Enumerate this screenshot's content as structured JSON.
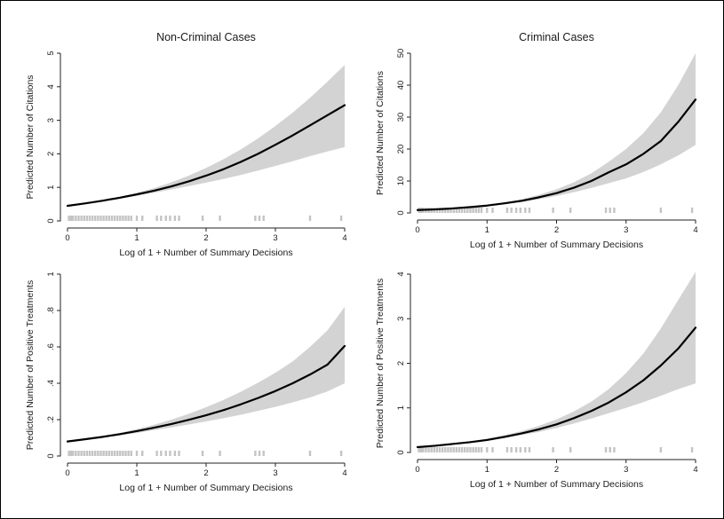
{
  "chart_data": [
    {
      "type": "line",
      "title": "Non-Criminal Cases",
      "xlabel": "Log of 1 + Number of Summary Decisions",
      "ylabel": "Predicted Number of Citations",
      "xlim": [
        0,
        4
      ],
      "ylim": [
        0,
        5
      ],
      "xticks": [
        "0",
        "1",
        "2",
        "3",
        "4"
      ],
      "yticks": [
        "0",
        "1",
        "2",
        "3",
        "4",
        "5"
      ],
      "series": [
        {
          "x": [
            0,
            0.25,
            0.5,
            0.75,
            1,
            1.25,
            1.5,
            1.75,
            2,
            2.25,
            2.5,
            2.75,
            3,
            3.25,
            3.5,
            3.75,
            4
          ],
          "y": [
            0.45,
            0.52,
            0.6,
            0.69,
            0.79,
            0.9,
            1.03,
            1.18,
            1.35,
            1.54,
            1.76,
            2.0,
            2.27,
            2.55,
            2.85,
            3.15,
            3.45
          ],
          "lower": [
            0.43,
            0.5,
            0.58,
            0.66,
            0.75,
            0.84,
            0.94,
            1.04,
            1.14,
            1.25,
            1.37,
            1.5,
            1.64,
            1.78,
            1.93,
            2.07,
            2.2
          ],
          "upper": [
            0.47,
            0.54,
            0.62,
            0.72,
            0.84,
            0.98,
            1.15,
            1.35,
            1.58,
            1.84,
            2.13,
            2.46,
            2.83,
            3.23,
            3.67,
            4.15,
            4.65
          ]
        }
      ],
      "rug": [
        0.02,
        0.05,
        0.08,
        0.12,
        0.16,
        0.2,
        0.24,
        0.28,
        0.32,
        0.36,
        0.4,
        0.44,
        0.48,
        0.52,
        0.56,
        0.6,
        0.64,
        0.68,
        0.72,
        0.76,
        0.8,
        0.84,
        0.88,
        0.92,
        1.0,
        1.08,
        1.29,
        1.35,
        1.42,
        1.48,
        1.55,
        1.61,
        1.95,
        2.2,
        2.71,
        2.77,
        2.83,
        3.5,
        3.95
      ]
    },
    {
      "type": "line",
      "title": "Criminal Cases",
      "xlabel": "Log of 1 + Number of Summary Decisions",
      "ylabel": "Predicted Number of Citations",
      "xlim": [
        0,
        4
      ],
      "ylim": [
        0,
        50
      ],
      "xticks": [
        "0",
        "1",
        "2",
        "3",
        "4"
      ],
      "yticks": [
        "0",
        "10",
        "20",
        "30",
        "40",
        "50"
      ],
      "series": [
        {
          "x": [
            0,
            0.25,
            0.5,
            0.75,
            1,
            1.25,
            1.5,
            1.75,
            2,
            2.25,
            2.5,
            2.75,
            3,
            3.25,
            3.5,
            3.75,
            4
          ],
          "y": [
            0.9,
            1.1,
            1.4,
            1.8,
            2.3,
            3.0,
            3.8,
            4.9,
            6.2,
            7.9,
            10.0,
            12.7,
            15.2,
            18.5,
            22.5,
            28.5,
            35.5
          ],
          "lower": [
            0.8,
            1.0,
            1.3,
            1.7,
            2.1,
            2.7,
            3.4,
            4.3,
            5.3,
            6.5,
            7.8,
            9.3,
            10.8,
            12.8,
            15.2,
            18.0,
            21.3
          ],
          "upper": [
            1.0,
            1.2,
            1.5,
            1.9,
            2.5,
            3.3,
            4.3,
            5.7,
            7.4,
            9.6,
            12.4,
            16.0,
            20.0,
            25.0,
            31.5,
            40.0,
            50.0
          ]
        }
      ],
      "rug": [
        0.02,
        0.05,
        0.08,
        0.12,
        0.16,
        0.2,
        0.24,
        0.28,
        0.32,
        0.36,
        0.4,
        0.44,
        0.48,
        0.52,
        0.56,
        0.6,
        0.64,
        0.68,
        0.72,
        0.76,
        0.8,
        0.84,
        0.88,
        0.92,
        1.0,
        1.08,
        1.29,
        1.35,
        1.42,
        1.48,
        1.55,
        1.61,
        1.95,
        2.2,
        2.71,
        2.77,
        2.83,
        3.5,
        3.95
      ]
    },
    {
      "type": "line",
      "title": "",
      "xlabel": "Log of 1 + Number of Summary Decisions",
      "ylabel": "Predicted Number of Positive Treatments",
      "xlim": [
        0,
        4
      ],
      "ylim": [
        0,
        1
      ],
      "xticks": [
        "0",
        "1",
        "2",
        "3",
        "4"
      ],
      "yticks": [
        "0",
        ".2",
        ".4",
        ".6",
        ".8",
        "1"
      ],
      "series": [
        {
          "x": [
            0,
            0.25,
            0.5,
            0.75,
            1,
            1.25,
            1.5,
            1.75,
            2,
            2.25,
            2.5,
            2.75,
            3,
            3.25,
            3.5,
            3.75,
            4
          ],
          "y": [
            0.08,
            0.092,
            0.105,
            0.12,
            0.137,
            0.156,
            0.176,
            0.199,
            0.224,
            0.252,
            0.284,
            0.319,
            0.357,
            0.4,
            0.448,
            0.502,
            0.605
          ],
          "lower": [
            0.076,
            0.088,
            0.1,
            0.113,
            0.127,
            0.142,
            0.157,
            0.173,
            0.19,
            0.208,
            0.227,
            0.248,
            0.27,
            0.295,
            0.322,
            0.355,
            0.4
          ],
          "upper": [
            0.084,
            0.096,
            0.11,
            0.127,
            0.148,
            0.172,
            0.2,
            0.232,
            0.268,
            0.308,
            0.353,
            0.403,
            0.458,
            0.52,
            0.6,
            0.69,
            0.82
          ]
        }
      ],
      "rug": [
        0.02,
        0.05,
        0.08,
        0.12,
        0.16,
        0.2,
        0.24,
        0.28,
        0.32,
        0.36,
        0.4,
        0.44,
        0.48,
        0.52,
        0.56,
        0.6,
        0.64,
        0.68,
        0.72,
        0.76,
        0.8,
        0.84,
        0.88,
        0.92,
        1.0,
        1.08,
        1.29,
        1.35,
        1.42,
        1.48,
        1.55,
        1.61,
        1.95,
        2.2,
        2.71,
        2.77,
        2.83,
        3.5,
        3.95
      ]
    },
    {
      "type": "line",
      "title": "",
      "xlabel": "Log of 1 + Number of Summary Decisions",
      "ylabel": "Predicted Number of Positive Treatments",
      "xlim": [
        0,
        4
      ],
      "ylim": [
        0,
        4
      ],
      "xticks": [
        "0",
        "1",
        "2",
        "3",
        "4"
      ],
      "yticks": [
        "0",
        "1",
        "2",
        "3",
        "4"
      ],
      "series": [
        {
          "x": [
            0,
            0.25,
            0.5,
            0.75,
            1,
            1.25,
            1.5,
            1.75,
            2,
            2.25,
            2.5,
            2.75,
            3,
            3.25,
            3.5,
            3.75,
            4
          ],
          "y": [
            0.12,
            0.15,
            0.19,
            0.23,
            0.28,
            0.35,
            0.43,
            0.52,
            0.63,
            0.77,
            0.93,
            1.12,
            1.35,
            1.62,
            1.95,
            2.33,
            2.8
          ],
          "lower": [
            0.11,
            0.14,
            0.17,
            0.21,
            0.26,
            0.32,
            0.39,
            0.46,
            0.55,
            0.65,
            0.76,
            0.88,
            1.0,
            1.13,
            1.27,
            1.42,
            1.55
          ],
          "upper": [
            0.13,
            0.16,
            0.2,
            0.25,
            0.31,
            0.39,
            0.48,
            0.6,
            0.74,
            0.92,
            1.14,
            1.42,
            1.78,
            2.22,
            2.78,
            3.42,
            4.05
          ]
        }
      ],
      "rug": [
        0.02,
        0.05,
        0.08,
        0.12,
        0.16,
        0.2,
        0.24,
        0.28,
        0.32,
        0.36,
        0.4,
        0.44,
        0.48,
        0.52,
        0.56,
        0.6,
        0.64,
        0.68,
        0.72,
        0.76,
        0.8,
        0.84,
        0.88,
        0.92,
        1.0,
        1.08,
        1.29,
        1.35,
        1.42,
        1.48,
        1.55,
        1.61,
        1.95,
        2.2,
        2.71,
        2.77,
        2.83,
        3.5,
        3.95
      ]
    }
  ],
  "colors": {
    "line": "#000000",
    "band": "#d3d3d3",
    "rug": "#c4c4c4",
    "axis": "#222222"
  }
}
